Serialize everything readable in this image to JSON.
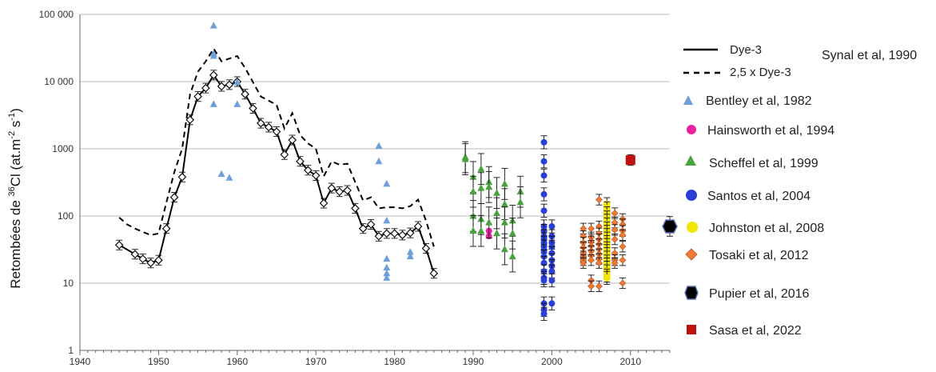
{
  "chart_data": {
    "type": "scatter",
    "title": "",
    "xlabel": "",
    "ylabel": {
      "pre": "Retombées de ",
      "sup1": "36",
      "mid": "Cl (at.m",
      "sup2": "-2",
      "mid2": " s",
      "sup3": "-1",
      "post": ")"
    },
    "xlim": [
      1940,
      2015
    ],
    "ylim": [
      1,
      100000
    ],
    "yscale": "log",
    "grid": "horizontal",
    "legend_position": "right",
    "x_ticks": [
      1940,
      1950,
      1960,
      1970,
      1980,
      1990,
      2000,
      2010
    ],
    "y_ticks": [
      {
        "value": 1,
        "label": "1"
      },
      {
        "value": 10,
        "label": "10"
      },
      {
        "value": 100,
        "label": "100"
      },
      {
        "value": 1000,
        "label": "1000"
      },
      {
        "value": 10000,
        "label": "10 000"
      },
      {
        "value": 100000,
        "label": "100 000"
      }
    ],
    "series": [
      {
        "name": "Dye-3",
        "style": "solid-line-diamond",
        "color": "#000000",
        "x": [
          1945,
          1947,
          1948,
          1949,
          1950,
          1951,
          1952,
          1953,
          1954,
          1955,
          1956,
          1957,
          1958,
          1959,
          1960,
          1961,
          1962,
          1963,
          1964,
          1965,
          1966,
          1967,
          1968,
          1969,
          1970,
          1971,
          1972,
          1973,
          1974,
          1975,
          1976,
          1977,
          1978,
          1979,
          1980,
          1981,
          1982,
          1983,
          1984,
          1985
        ],
        "y": [
          37,
          27,
          23,
          20,
          22,
          65,
          190,
          380,
          2700,
          6000,
          8000,
          12500,
          8500,
          9000,
          10000,
          6500,
          4000,
          2400,
          2100,
          1800,
          820,
          1350,
          650,
          480,
          400,
          155,
          260,
          230,
          240,
          130,
          65,
          75,
          50,
          55,
          55,
          52,
          56,
          70,
          33,
          14
        ]
      },
      {
        "name": "2,5 x Dye-3",
        "style": "dashed-line",
        "color": "#000000",
        "x": [
          1945,
          1946,
          1947,
          1948,
          1949,
          1950,
          1951,
          1952,
          1953,
          1954,
          1955,
          1956,
          1957,
          1958,
          1959,
          1960,
          1961,
          1962,
          1963,
          1964,
          1965,
          1966,
          1967,
          1968,
          1969,
          1970,
          1971,
          1972,
          1973,
          1974,
          1975,
          1976,
          1977,
          1978,
          1979,
          1980,
          1981,
          1982,
          1983,
          1984,
          1985
        ],
        "y": [
          95,
          75,
          65,
          58,
          52,
          55,
          160,
          450,
          1000,
          6500,
          14000,
          20000,
          31000,
          20000,
          22000,
          24000,
          16000,
          9800,
          6000,
          5200,
          4500,
          2000,
          3400,
          1600,
          1200,
          1000,
          390,
          650,
          580,
          600,
          320,
          170,
          190,
          130,
          135,
          135,
          130,
          140,
          175,
          85,
          35
        ]
      },
      {
        "name": "Bentley et al, 1982",
        "style": "triangle",
        "color": "#6f9fd8",
        "x": [
          1957,
          1957,
          1957,
          1957,
          1958,
          1959,
          1960,
          1960,
          1978,
          1978,
          1979,
          1979,
          1979,
          1979,
          1979,
          1979,
          1982,
          1982
        ],
        "y": [
          68000,
          26000,
          24000,
          4600,
          420,
          370,
          9800,
          4600,
          1100,
          650,
          300,
          85,
          23,
          17,
          14,
          12,
          29,
          25
        ]
      },
      {
        "name": "Hainsworth et al, 1994",
        "style": "circle",
        "color": "#e9239e",
        "x": [
          1992,
          1992
        ],
        "y": [
          60,
          50
        ]
      },
      {
        "name": "Scheffel et al, 1999",
        "style": "triangle",
        "color": "#4aa140",
        "x": [
          1989,
          1989,
          1990,
          1990,
          1990,
          1990,
          1991,
          1991,
          1991,
          1991,
          1992,
          1992,
          1992,
          1993,
          1993,
          1993,
          1994,
          1994,
          1994,
          1994,
          1995,
          1995,
          1995,
          1996,
          1996
        ],
        "y": [
          750,
          700,
          380,
          230,
          100,
          60,
          500,
          260,
          90,
          60,
          320,
          270,
          80,
          220,
          110,
          55,
          300,
          150,
          80,
          32,
          85,
          55,
          25,
          230,
          160
        ]
      },
      {
        "name": "Santos et al, 2004",
        "style": "circle",
        "color": "#2a3fd6",
        "x": [
          1999,
          1999,
          1999,
          1999,
          1999,
          1999,
          1999,
          1999,
          1999,
          1999,
          1999,
          1999,
          1999,
          1999,
          1999,
          1999,
          1999,
          1999,
          1999,
          1999,
          2000,
          2000,
          2000,
          2000,
          2000,
          2000,
          2000,
          2000,
          2000,
          2000
        ],
        "y": [
          1250,
          650,
          400,
          210,
          120,
          70,
          60,
          50,
          45,
          40,
          35,
          30,
          25,
          20,
          15,
          12,
          11,
          5,
          4,
          3.5,
          70,
          50,
          40,
          35,
          28,
          22,
          18,
          15,
          11,
          5
        ]
      },
      {
        "name": "Johnston et al, 2008",
        "style": "circle",
        "color": "#f2e600",
        "x": [
          2007,
          2007,
          2007,
          2007,
          2007,
          2007,
          2007,
          2007,
          2007,
          2007,
          2007,
          2007,
          2007,
          2007,
          2007,
          2007,
          2007,
          2007,
          2007,
          2007,
          2007,
          2007
        ],
        "y": [
          150,
          130,
          110,
          95,
          85,
          75,
          65,
          58,
          52,
          46,
          41,
          37,
          33,
          30,
          27,
          24,
          21,
          19,
          17,
          15,
          13,
          12
        ]
      },
      {
        "name": "Tosaki et al, 2012",
        "style": "diamond",
        "color": "#f07a36",
        "x": [
          2004,
          2004,
          2004,
          2004,
          2004,
          2004,
          2004,
          2004,
          2005,
          2005,
          2005,
          2005,
          2005,
          2005,
          2005,
          2005,
          2005,
          2006,
          2006,
          2006,
          2006,
          2006,
          2006,
          2006,
          2006,
          2006,
          2006,
          2008,
          2008,
          2008,
          2008,
          2008,
          2008,
          2008,
          2009,
          2009,
          2009,
          2009,
          2009,
          2009,
          2009
        ],
        "y": [
          65,
          50,
          40,
          34,
          28,
          25,
          22,
          20,
          65,
          48,
          42,
          36,
          30,
          26,
          22,
          11,
          9,
          175,
          70,
          55,
          45,
          38,
          32,
          27,
          23,
          20,
          9,
          110,
          80,
          62,
          45,
          28,
          22,
          20,
          90,
          75,
          60,
          52,
          35,
          22,
          10
        ]
      },
      {
        "name": "Pupier et al, 2016",
        "style": "hexagon",
        "color": "#000000",
        "x": [
          2015
        ],
        "y": [
          70
        ]
      },
      {
        "name": "Sasa et al, 2022",
        "style": "square",
        "color": "#c0100f",
        "x": [
          2010
        ],
        "y": [
          680
        ]
      }
    ],
    "annotations": [
      "Synal et al, 1990"
    ]
  }
}
